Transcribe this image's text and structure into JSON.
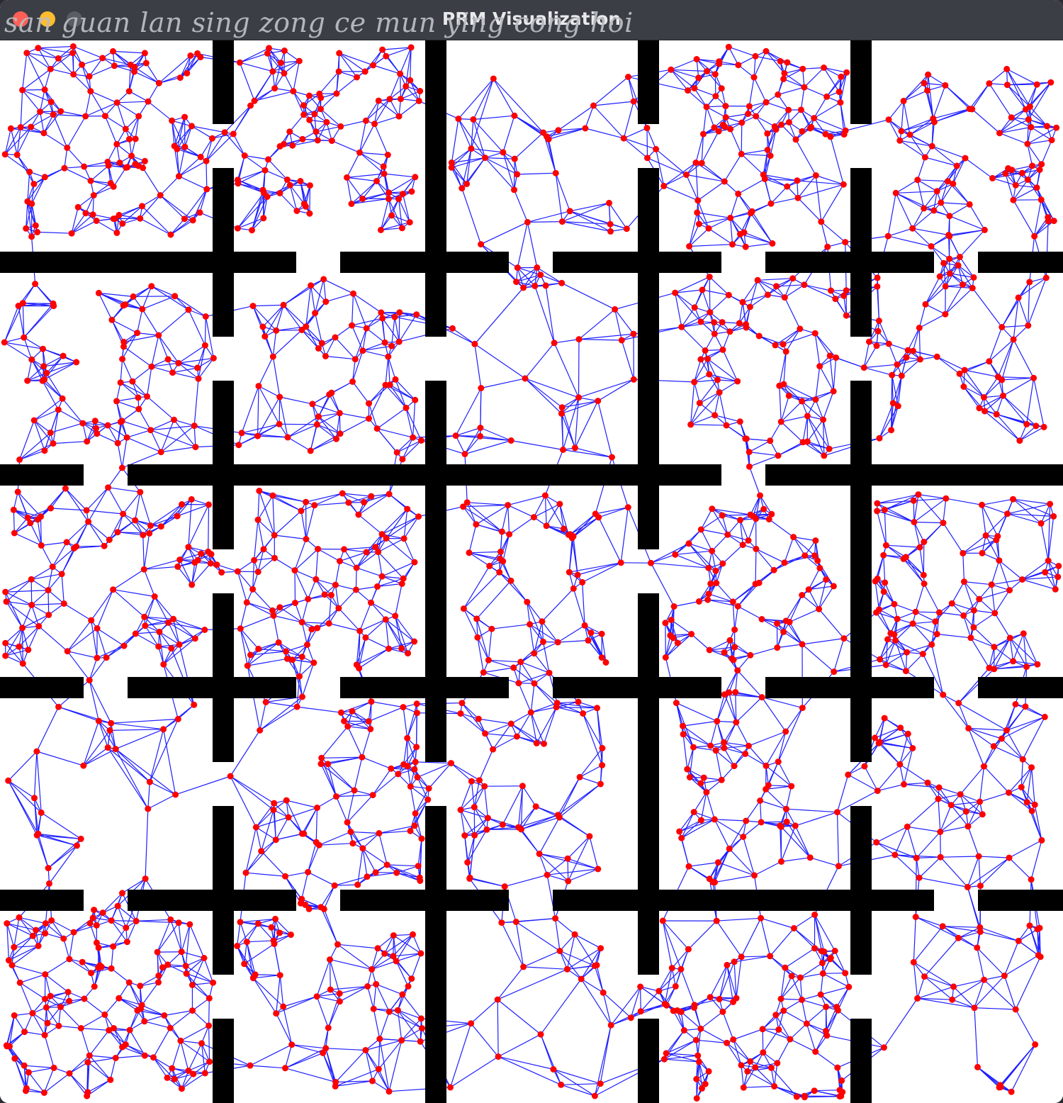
{
  "window": {
    "title": "PRM Visualization",
    "overlay_text": "san guan lan sing zong  ce mun ying cong hoi"
  },
  "colors": {
    "background": "#ffffff",
    "obstacle": "#000000",
    "edge": "#1f1fff",
    "node": "#ff0000",
    "titlebar": "#3b3e45"
  }
}
